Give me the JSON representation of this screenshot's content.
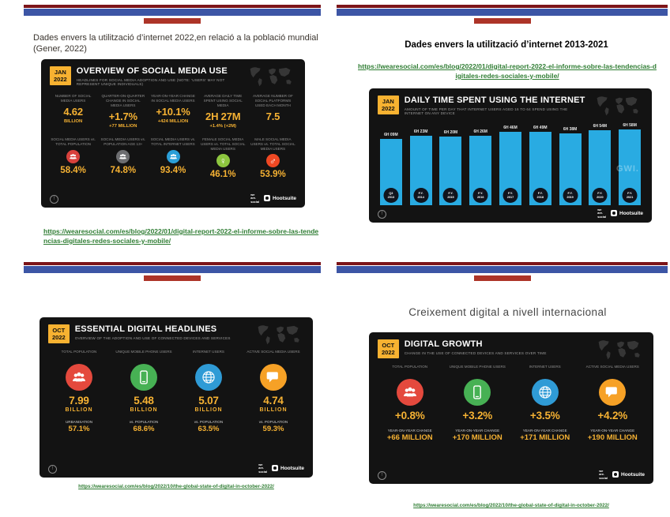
{
  "colors": {
    "deco_maroon": "#7c1418",
    "deco_blue": "#3c55a5",
    "deco_red": "#ad3428",
    "link_green": "#2f7d33",
    "card_background": "#131313",
    "accent_yellow": "#f6b233",
    "badge_yellow": "#f7b231",
    "chart_bar_blue": "#29abe2"
  },
  "icons": {
    "info": "!"
  },
  "brand": {
    "we_are_social_lines": [
      "we",
      "are.",
      "social"
    ],
    "hootsuite": "Hootsuite"
  },
  "slide1": {
    "title": "Dades envers la utilització d’internet 2022,en relació a la població mundial (Gener, 2022)",
    "link": "https://wearesocial.com/es/blog/2022/01/digital-report-2022-el-informe-sobre-las-tendencias-digitales-redes-sociales-y-mobile/",
    "card": {
      "badge": {
        "month": "JAN",
        "year": "2022"
      },
      "title": "OVERVIEW OF SOCIAL MEDIA USE",
      "subtitle": "HEADLINES FOR SOCIAL MEDIA ADOPTION AND USE (NOTE: ‘USERS’ MAY NOT REPRESENT UNIQUE INDIVIDUALS)",
      "row1": [
        {
          "label": "NUMBER OF SOCIAL MEDIA USERS",
          "value": "4.62",
          "sub": "BILLION"
        },
        {
          "label": "QUARTER-ON-QUARTER CHANGE IN SOCIAL MEDIA USERS",
          "value": "+1.7%",
          "sub": "+77 MILLION"
        },
        {
          "label": "YEAR-ON-YEAR CHANGE IN SOCIAL MEDIA USERS",
          "value": "+10.1%",
          "sub": "+424 MILLION"
        },
        {
          "label": "AVERAGE DAILY TIME SPENT USING SOCIAL MEDIA",
          "value": "2H 27M",
          "sub": "+1.4% (+2M)"
        },
        {
          "label": "AVERAGE NUMBER OF SOCIAL PLATFORMS USED EACH MONTH",
          "value": "7.5",
          "sub": ""
        }
      ],
      "row2": [
        {
          "label": "SOCIAL MEDIA USERS vs. TOTAL POPULATION",
          "value": "58.4%",
          "icon": "people",
          "color": "#d8413c"
        },
        {
          "label": "SOCIAL MEDIA USERS vs. POPULATION AGE 13+",
          "value": "74.8%",
          "icon": "people",
          "color": "#6d6e71"
        },
        {
          "label": "SOCIAL MEDIA USERS vs. TOTAL INTERNET USERS",
          "value": "93.4%",
          "icon": "people",
          "color": "#2b9fd8"
        },
        {
          "label": "FEMALE SOCIAL MEDIA USERS vs. TOTAL SOCIAL MEDIA USERS",
          "value": "46.1%",
          "icon": "female",
          "color": "#8dc63f"
        },
        {
          "label": "MALE SOCIAL MEDIA USERS vs. TOTAL SOCIAL MEDIA USERS",
          "value": "53.9%",
          "icon": "male",
          "color": "#ef4823"
        }
      ]
    }
  },
  "slide2": {
    "title": "Dades envers la utilització d’internet 2013-2021",
    "link": "https://wearesocial.com/es/blog/2022/01/digital-report-2022-el-informe-sobre-las-tendencias-digitales-redes-sociales-y-mobile/",
    "card": {
      "badge": {
        "month": "JAN",
        "year": "2022"
      },
      "title": "DAILY TIME SPENT USING THE INTERNET",
      "subtitle": "AMOUNT OF TIME PER DAY THAT INTERNET USERS AGED 16 TO 64 SPEND USING THE INTERNET ON ANY DEVICE",
      "watermark": "GWI."
    }
  },
  "chart_data": {
    "type": "bar",
    "title": "DAILY TIME SPENT USING THE INTERNET",
    "categories": [
      "Q3 2013",
      "F.Y. 2014",
      "F.Y. 2015",
      "F.Y. 2016",
      "F.Y. 2017",
      "F.Y. 2018",
      "F.Y. 2019",
      "F.Y. 2020",
      "F.Y. 2021"
    ],
    "bar_labels": [
      "6H 09M",
      "6H 23M",
      "6H 20M",
      "6H 26M",
      "6H 46M",
      "6H 49M",
      "6H 38M",
      "6H 54M",
      "6H 58M"
    ],
    "values_minutes": [
      369,
      383,
      380,
      386,
      406,
      409,
      398,
      414,
      418
    ],
    "ylim_minutes": [
      0,
      420
    ],
    "bar_color": "#29abe2",
    "legend": "none",
    "grid": false
  },
  "slide3": {
    "link": "https://wearesocial.com/es/blog/2022/10/the-global-state-of-digital-in-october-2022/",
    "card": {
      "badge": {
        "month": "OCT",
        "year": "2022"
      },
      "title": "ESSENTIAL DIGITAL HEADLINES",
      "subtitle": "OVERVIEW OF THE ADOPTION AND USE OF CONNECTED DEVICES AND SERVICES",
      "columns": [
        {
          "label": "TOTAL POPULATION",
          "icon": "people",
          "color": "#e4493d",
          "value": "7.99",
          "unit": "BILLION",
          "sub_label": "URBANISATION",
          "sub_value": "57.1%"
        },
        {
          "label": "UNIQUE MOBILE PHONE USERS",
          "icon": "phone",
          "color": "#47b154",
          "value": "5.48",
          "unit": "BILLION",
          "sub_label": "vs. POPULATION",
          "sub_value": "68.6%"
        },
        {
          "label": "INTERNET USERS",
          "icon": "globe",
          "color": "#2f9bd6",
          "value": "5.07",
          "unit": "BILLION",
          "sub_label": "vs. POPULATION",
          "sub_value": "63.5%"
        },
        {
          "label": "ACTIVE SOCIAL MEDIA USERS",
          "icon": "chat",
          "color": "#f6a126",
          "value": "4.74",
          "unit": "BILLION",
          "sub_label": "vs. POPULATION",
          "sub_value": "59.3%"
        }
      ]
    }
  },
  "slide4": {
    "title": "Creixement digital a nivell  internacional",
    "link": "https://wearesocial.com/es/blog/2022/10/the-global-state-of-digital-in-october-2022/",
    "card": {
      "badge": {
        "month": "OCT",
        "year": "2022"
      },
      "title": "DIGITAL GROWTH",
      "subtitle": "CHANGE IN THE USE OF CONNECTED DEVICES AND SERVICES OVER TIME",
      "columns": [
        {
          "label": "TOTAL POPULATION",
          "icon": "people",
          "color": "#e4493d",
          "value": "+0.8%",
          "unit": "",
          "sub_label": "YEAR-ON-YEAR CHANGE",
          "sub_value": "+66 MILLION"
        },
        {
          "label": "UNIQUE MOBILE PHONE USERS",
          "icon": "phone",
          "color": "#47b154",
          "value": "+3.2%",
          "unit": "",
          "sub_label": "YEAR-ON-YEAR CHANGE",
          "sub_value": "+170 MILLION"
        },
        {
          "label": "INTERNET USERS",
          "icon": "globe",
          "color": "#2f9bd6",
          "value": "+3.5%",
          "unit": "",
          "sub_label": "YEAR-ON-YEAR CHANGE",
          "sub_value": "+171 MILLION"
        },
        {
          "label": "ACTIVE SOCIAL MEDIA USERS",
          "icon": "chat",
          "color": "#f6a126",
          "value": "+4.2%",
          "unit": "",
          "sub_label": "YEAR-ON-YEAR CHANGE",
          "sub_value": "+190 MILLION"
        }
      ]
    }
  }
}
